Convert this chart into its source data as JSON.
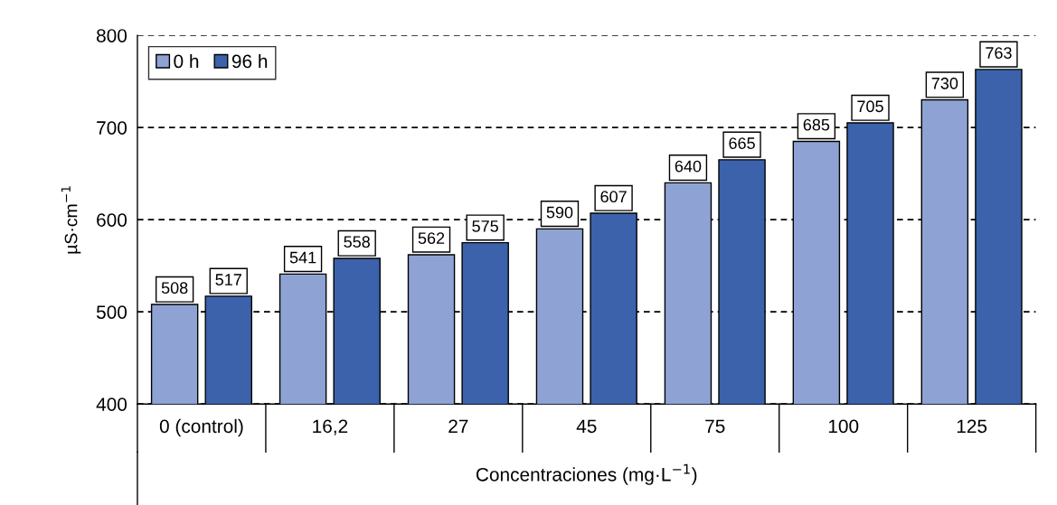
{
  "chart_data": {
    "type": "bar",
    "xlabel": "Concentraciones (mg·L$^{−1}$)",
    "ylabel": "µS·cm$^{−1}$",
    "categories": [
      "0 (control)",
      "16,2",
      "27",
      "45",
      "75",
      "100",
      "125"
    ],
    "series": [
      {
        "name": "0 h",
        "color": "#8fa2d4",
        "values": [
          508,
          541,
          562,
          590,
          640,
          685,
          730
        ]
      },
      {
        "name": "96 h",
        "color": "#3b62ab",
        "values": [
          517,
          558,
          575,
          607,
          665,
          705,
          763
        ]
      }
    ],
    "ylim": [
      400,
      800
    ],
    "yticks": [
      400,
      500,
      600,
      700,
      800
    ],
    "grid": "y",
    "legend": "top left",
    "data_labels": true
  }
}
